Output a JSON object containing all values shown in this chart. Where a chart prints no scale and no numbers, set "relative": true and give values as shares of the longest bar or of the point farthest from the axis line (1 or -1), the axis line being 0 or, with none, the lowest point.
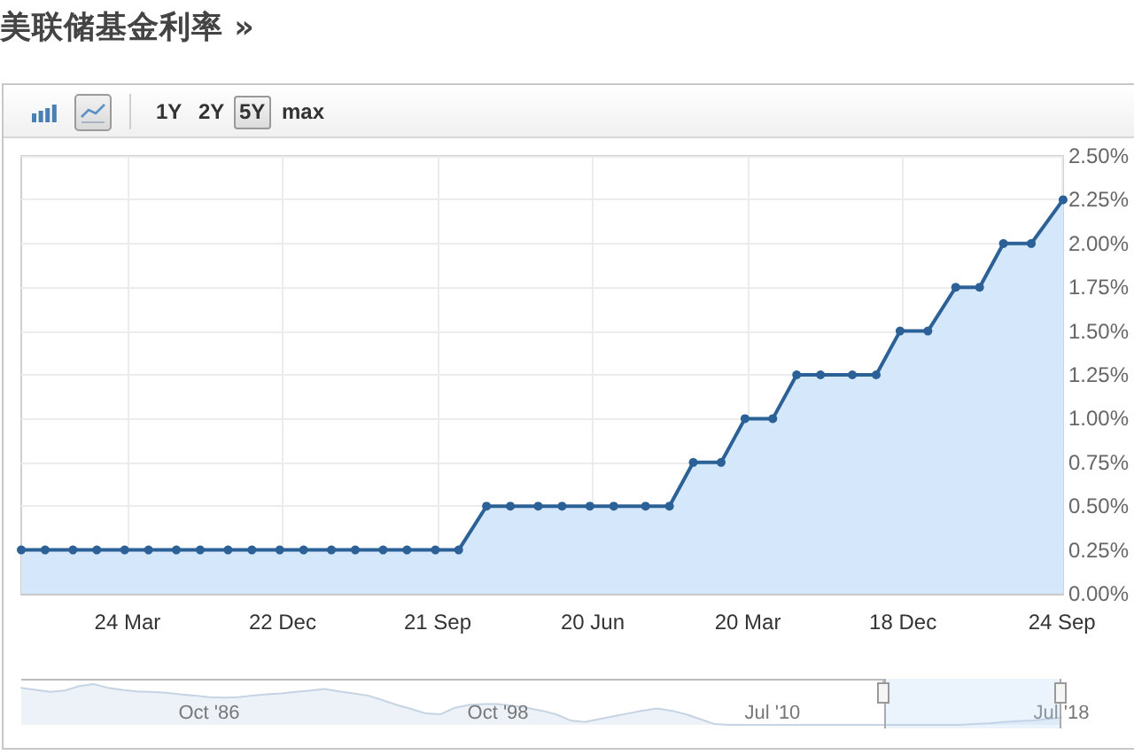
{
  "chart_data": [
    {
      "type": "area",
      "title": "美联储基金利率 »",
      "annotations": [
        "1Y",
        "2Y",
        "5Y",
        "max"
      ],
      "x": [
        "2013-09-18",
        "2013-10-30",
        "2013-12-18",
        "2014-01-29",
        "2014-03-19",
        "2014-04-30",
        "2014-06-18",
        "2014-07-30",
        "2014-09-17",
        "2014-10-29",
        "2014-12-17",
        "2015-01-28",
        "2015-03-18",
        "2015-04-29",
        "2015-06-17",
        "2015-07-29",
        "2015-09-17",
        "2015-10-28",
        "2015-12-16",
        "2016-01-27",
        "2016-03-16",
        "2016-04-27",
        "2016-06-15",
        "2016-07-27",
        "2016-09-21",
        "2016-11-02",
        "2016-12-14",
        "2017-02-01",
        "2017-03-15",
        "2017-05-03",
        "2017-06-14",
        "2017-07-26",
        "2017-09-20",
        "2017-11-01",
        "2017-12-13",
        "2018-01-31",
        "2018-03-21",
        "2018-05-02",
        "2018-06-13",
        "2018-08-01",
        "2018-09-26"
      ],
      "series": [
        {
          "color": "#2b6196",
          "values": [
            0.25,
            0.25,
            0.25,
            0.25,
            0.25,
            0.25,
            0.25,
            0.25,
            0.25,
            0.25,
            0.25,
            0.25,
            0.25,
            0.25,
            0.25,
            0.25,
            0.25,
            0.25,
            0.5,
            0.5,
            0.5,
            0.5,
            0.5,
            0.5,
            0.5,
            0.5,
            0.75,
            0.75,
            1,
            1,
            1.25,
            1.25,
            1.25,
            1.25,
            1.5,
            1.5,
            1.75,
            1.75,
            2,
            2,
            2.25
          ]
        }
      ],
      "xlim": [
        "2013-09-18",
        "2018-09-26"
      ],
      "xticks": [
        {
          "value": "2014-03-24",
          "label": "24 Mar"
        },
        {
          "value": "2014-12-22",
          "label": "22 Dec"
        },
        {
          "value": "2015-09-21",
          "label": "21 Sep"
        },
        {
          "value": "2016-06-20",
          "label": "20 Jun"
        },
        {
          "value": "2017-03-20",
          "label": "20 Mar"
        },
        {
          "value": "2017-12-18",
          "label": "18 Dec"
        },
        {
          "value": "2018-09-24",
          "label": "24 Sep"
        }
      ],
      "ylim": [
        0,
        2.5
      ],
      "yticks": [
        {
          "value": 0,
          "label": "0.00%"
        },
        {
          "value": 0.25,
          "label": "0.25%"
        },
        {
          "value": 0.5,
          "label": "0.50%"
        },
        {
          "value": 0.75,
          "label": "0.75%"
        },
        {
          "value": 1,
          "label": "1.00%"
        },
        {
          "value": 1.25,
          "label": "1.25%"
        },
        {
          "value": 1.5,
          "label": "1.50%"
        },
        {
          "value": 1.75,
          "label": "1.75%"
        },
        {
          "value": 2,
          "label": "2.00%"
        },
        {
          "value": 2.25,
          "label": "2.25%"
        },
        {
          "value": 2.5,
          "label": "2.50%"
        }
      ],
      "grid": true,
      "marker": "circle"
    },
    {
      "type": "area",
      "relative": true,
      "categories": [
        null,
        null,
        null,
        null,
        null,
        null,
        null,
        null,
        null,
        null,
        null,
        null,
        null,
        "Oct '86",
        null,
        null,
        null,
        null,
        null,
        null,
        null,
        null,
        null,
        null,
        null,
        null,
        null,
        null,
        null,
        null,
        null,
        null,
        null,
        "Oct '98",
        null,
        null,
        null,
        null,
        null,
        null,
        null,
        null,
        null,
        null,
        null,
        null,
        null,
        null,
        null,
        null,
        null,
        null,
        "Jul '10",
        null,
        null,
        null,
        null,
        null,
        null,
        null,
        null,
        null,
        null,
        null,
        null,
        null,
        null,
        null,
        null,
        null,
        null,
        null,
        "Jul '18"
      ],
      "series": [
        {
          "color": "#c6d3e2",
          "values": [
            0.91,
            0.86,
            0.81,
            0.84,
            0.95,
            1,
            0.91,
            0.86,
            0.82,
            0.81,
            0.79,
            0.75,
            0.72,
            0.68,
            0.67,
            0.68,
            0.72,
            0.75,
            0.77,
            0.81,
            0.84,
            0.88,
            0.82,
            0.77,
            0.72,
            0.61,
            0.49,
            0.39,
            0.28,
            0.26,
            0.42,
            0.49,
            0.51,
            0.51,
            0.47,
            0.42,
            0.35,
            0.26,
            0.11,
            0.07,
            0.14,
            0.21,
            0.28,
            0.35,
            0.4,
            0.35,
            0.26,
            0.14,
            0.02,
            0,
            0,
            0,
            0,
            0,
            0,
            0,
            0,
            0,
            0,
            0,
            0,
            0,
            0,
            0,
            0,
            0,
            0.02,
            0.04,
            0.07,
            0.09,
            0.11,
            0.14,
            0.18
          ]
        }
      ]
    }
  ]
}
